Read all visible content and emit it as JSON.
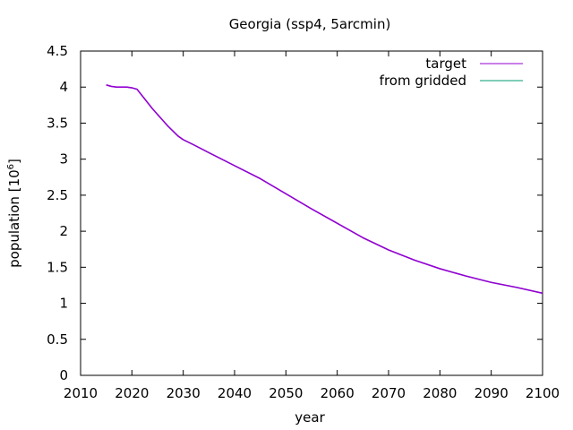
{
  "chart_data": {
    "type": "line",
    "title": "Georgia (ssp4, 5arcmin)",
    "xlabel": "year",
    "ylabel": "population [10",
    "ylabel_sup": "6",
    "ylabel_close": "]",
    "xlim": [
      2010,
      2100
    ],
    "ylim": [
      0,
      4.5
    ],
    "x_ticks": [
      2010,
      2020,
      2030,
      2040,
      2050,
      2060,
      2070,
      2080,
      2090,
      2100
    ],
    "y_ticks": [
      0,
      0.5,
      1,
      1.5,
      2,
      2.5,
      3,
      3.5,
      4,
      4.5
    ],
    "y_tick_labels": [
      "0",
      "0.5",
      "1",
      "1.5",
      "2",
      "2.5",
      "3",
      "3.5",
      "4",
      "4.5"
    ],
    "legend_position": "top-right",
    "grid": false,
    "series": [
      {
        "name": "target",
        "color": "#9400d3",
        "x": [
          2015,
          2016,
          2017,
          2018,
          2019,
          2020,
          2021,
          2022,
          2023,
          2024,
          2025,
          2026,
          2027,
          2028,
          2029,
          2030,
          2032,
          2035,
          2040,
          2045,
          2050,
          2055,
          2060,
          2065,
          2070,
          2075,
          2080,
          2085,
          2090,
          2095,
          2100
        ],
        "y": [
          4.03,
          4.01,
          4.0,
          4.0,
          4.0,
          3.99,
          3.97,
          3.88,
          3.79,
          3.7,
          3.62,
          3.54,
          3.46,
          3.39,
          3.32,
          3.27,
          3.2,
          3.09,
          2.91,
          2.73,
          2.52,
          2.31,
          2.11,
          1.91,
          1.74,
          1.6,
          1.48,
          1.38,
          1.29,
          1.22,
          1.14
        ]
      },
      {
        "name": "from gridded",
        "color": "#009e73",
        "x": [
          2015,
          2016,
          2017,
          2018,
          2019,
          2020,
          2021,
          2022,
          2023,
          2024,
          2025,
          2026,
          2027,
          2028,
          2029,
          2030,
          2032,
          2035,
          2040,
          2045,
          2050,
          2055,
          2060,
          2065,
          2070,
          2075,
          2080,
          2085,
          2090,
          2095,
          2100
        ],
        "y": [
          4.03,
          4.01,
          4.0,
          4.0,
          4.0,
          3.99,
          3.97,
          3.88,
          3.79,
          3.7,
          3.62,
          3.54,
          3.46,
          3.39,
          3.32,
          3.27,
          3.2,
          3.09,
          2.91,
          2.73,
          2.52,
          2.31,
          2.11,
          1.91,
          1.74,
          1.6,
          1.48,
          1.38,
          1.29,
          1.22,
          1.14
        ]
      }
    ]
  }
}
